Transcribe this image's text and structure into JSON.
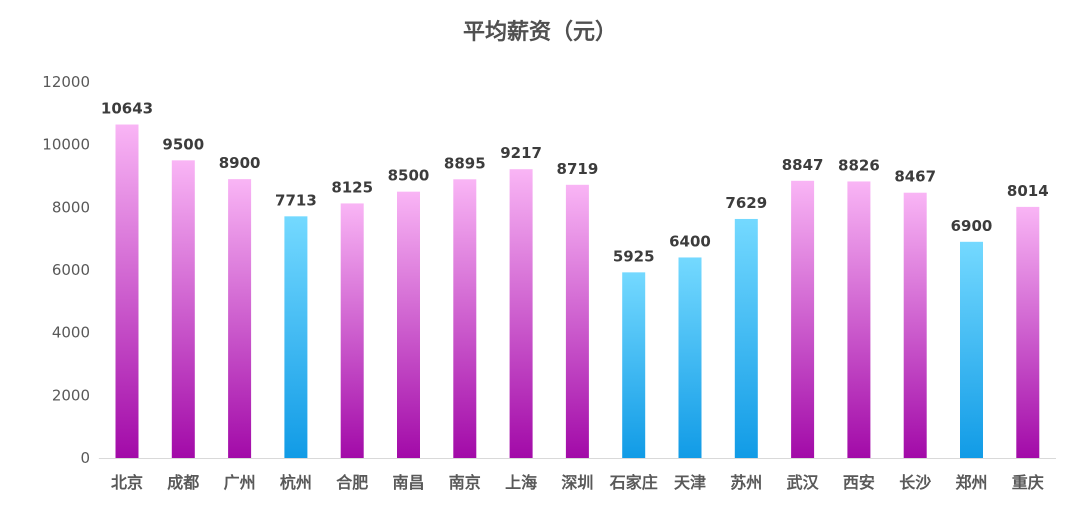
{
  "chart_data": {
    "type": "bar",
    "title": "平均薪资（元）",
    "xlabel": "",
    "ylabel": "",
    "ylim": [
      0,
      12000
    ],
    "yticks": [
      0,
      2000,
      4000,
      6000,
      8000,
      10000,
      12000
    ],
    "grid": false,
    "legend": "none",
    "categories": [
      "北京",
      "成都",
      "广州",
      "杭州",
      "合肥",
      "南昌",
      "南京",
      "上海",
      "深圳",
      "石家庄",
      "天津",
      "苏州",
      "武汉",
      "西安",
      "长沙",
      "郑州",
      "重庆"
    ],
    "values": [
      10643,
      9500,
      8900,
      7713,
      8125,
      8500,
      8895,
      9217,
      8719,
      5925,
      6400,
      7629,
      8847,
      8826,
      8467,
      6900,
      8014
    ],
    "colors": [
      "pink",
      "pink",
      "pink",
      "blue",
      "pink",
      "pink",
      "pink",
      "pink",
      "pink",
      "blue",
      "blue",
      "blue",
      "pink",
      "pink",
      "pink",
      "blue",
      "pink"
    ],
    "palette": {
      "pink_top": "#F9B5F5",
      "pink_bottom": "#A20AA8",
      "blue_top": "#74D9FF",
      "blue_bottom": "#119BE6",
      "axis_text": "#595959",
      "label_text": "#3C3C3C"
    }
  }
}
